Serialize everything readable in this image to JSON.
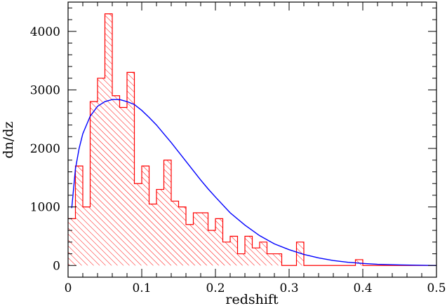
{
  "chart_data": {
    "type": "bar",
    "xlabel": "redshift",
    "ylabel": "dn/dz",
    "xlim": [
      0,
      0.5
    ],
    "ylim": [
      -200,
      4500
    ],
    "xticks": [
      {
        "value": 0,
        "label": "0"
      },
      {
        "value": 0.1,
        "label": "0.1"
      },
      {
        "value": 0.2,
        "label": "0.2"
      },
      {
        "value": 0.3,
        "label": "0.3"
      },
      {
        "value": 0.4,
        "label": "0.4"
      },
      {
        "value": 0.5,
        "label": "0.5"
      }
    ],
    "yticks": [
      {
        "value": 0,
        "label": "0"
      },
      {
        "value": 1000,
        "label": "1000"
      },
      {
        "value": 2000,
        "label": "2000"
      },
      {
        "value": 3000,
        "label": "3000"
      },
      {
        "value": 4000,
        "label": "4000"
      }
    ],
    "histogram": {
      "bin_width": 0.01,
      "bin_start": 0.0,
      "values": [
        800,
        1700,
        1000,
        2800,
        3200,
        4300,
        2900,
        2700,
        3300,
        1400,
        1700,
        1050,
        1300,
        1800,
        1100,
        1000,
        700,
        900,
        900,
        600,
        800,
        400,
        500,
        200,
        500,
        300,
        400,
        200,
        200,
        0,
        0,
        400,
        0,
        0,
        0,
        0,
        0,
        0,
        0,
        100,
        0,
        0,
        0,
        0,
        0,
        0,
        0,
        0,
        0,
        0
      ],
      "color": "#ff0000",
      "fill": "diagonal-hatch"
    },
    "fit_curve": {
      "color": "#0000ff",
      "x": [
        0.005,
        0.01,
        0.015,
        0.02,
        0.03,
        0.04,
        0.05,
        0.06,
        0.07,
        0.08,
        0.09,
        0.1,
        0.11,
        0.12,
        0.13,
        0.14,
        0.15,
        0.16,
        0.17,
        0.18,
        0.19,
        0.2,
        0.22,
        0.24,
        0.26,
        0.28,
        0.3,
        0.32,
        0.34,
        0.36,
        0.38,
        0.4,
        0.42,
        0.45,
        0.5
      ],
      "y": [
        980,
        1650,
        2000,
        2250,
        2550,
        2720,
        2800,
        2835,
        2835,
        2800,
        2750,
        2650,
        2530,
        2400,
        2250,
        2100,
        1940,
        1780,
        1620,
        1460,
        1310,
        1170,
        900,
        690,
        510,
        370,
        270,
        190,
        130,
        85,
        55,
        35,
        20,
        10,
        0
      ]
    }
  }
}
